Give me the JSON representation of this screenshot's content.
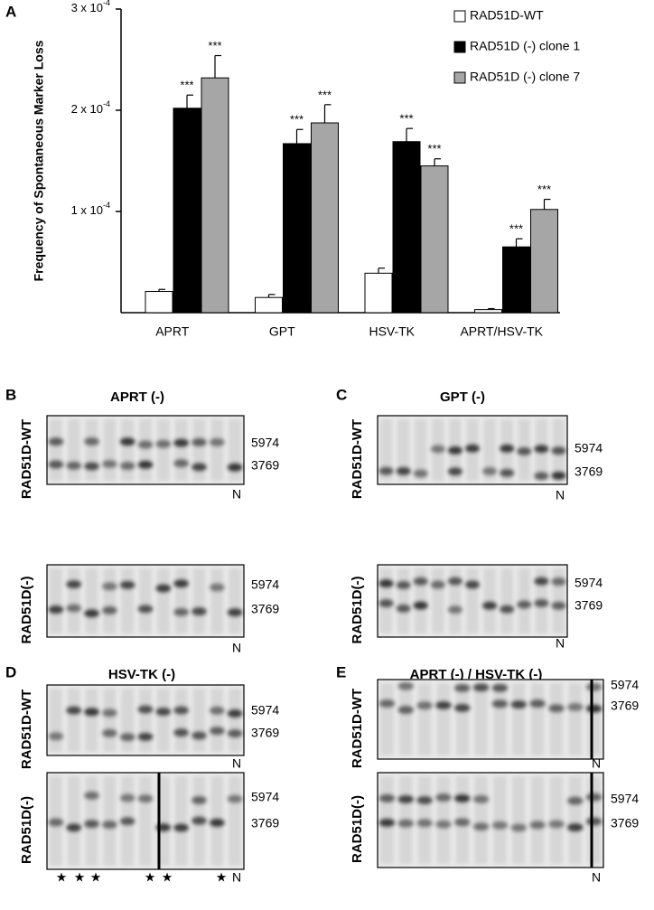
{
  "chart_data": {
    "type": "bar",
    "panel_label": "A",
    "y_label": "Frequency of Spontaneous Marker Loss",
    "categories": [
      "APRT",
      "GPT",
      "HSV-TK",
      "APRT/HSV-TK"
    ],
    "ylim": [
      0,
      0.0003
    ],
    "yticks": [
      {
        "value": 0.0001,
        "label": "1 x 10",
        "exponent": "-4"
      },
      {
        "value": 0.0002,
        "label": "2 x 10",
        "exponent": "-4"
      },
      {
        "value": 0.0003,
        "label": "3 x 10",
        "exponent": "-4"
      }
    ],
    "legend": "top-right",
    "series": [
      {
        "name": "RAD51D-WT",
        "color": "#ffffff",
        "values": [
          2.1e-05,
          1.5e-05,
          3.9e-05,
          3e-06
        ],
        "errors": [
          2e-06,
          3e-06,
          5e-06,
          1e-06
        ]
      },
      {
        "name": "RAD51D (-) clone 1",
        "color": "#000000",
        "values": [
          0.000202,
          0.000167,
          0.000169,
          6.5e-05
        ],
        "errors": [
          1.3e-05,
          1.4e-05,
          1.3e-05,
          8e-06
        ],
        "annotations": [
          "***",
          "***",
          "***",
          "***"
        ]
      },
      {
        "name": "RAD51D (-) clone 7",
        "color": "#a6a6a6",
        "values": [
          0.000232,
          0.0001875,
          0.000145,
          0.000102
        ],
        "errors": [
          2.2e-05,
          1.8e-05,
          7e-06,
          1e-05
        ],
        "annotations": [
          "***",
          "***",
          "***",
          "***"
        ]
      }
    ]
  },
  "blots": [
    {
      "panel": "B",
      "title": "APRT (-)",
      "rows": [
        {
          "label": "RAD51D-WT",
          "markers": [
            "5974",
            "3769"
          ],
          "lane_label": "N"
        },
        {
          "label": "RAD51D(-)",
          "markers": [
            "5974",
            "3769"
          ],
          "lane_label": "N"
        }
      ]
    },
    {
      "panel": "C",
      "title": "GPT (-)",
      "rows": [
        {
          "label": "RAD51D-WT",
          "markers": [
            "5974",
            "3769"
          ],
          "lane_label": "N"
        },
        {
          "label": "RAD51D(-)",
          "markers": [
            "5974",
            "3769"
          ],
          "lane_label": "N"
        }
      ]
    },
    {
      "panel": "D",
      "title": "HSV-TK (-)",
      "rows": [
        {
          "label": "RAD51D-WT",
          "markers": [
            "5974",
            "3769"
          ],
          "lane_label": "N"
        },
        {
          "label": "RAD51D(-)",
          "markers": [
            "5974",
            "3769"
          ],
          "lane_label": "N",
          "lane_marks": [
            "★",
            "★",
            "★",
            "★",
            "★",
            "★"
          ]
        }
      ]
    },
    {
      "panel": "E",
      "title": "APRT (-) / HSV-TK (-)",
      "rows": [
        {
          "label": "RAD51D-WT",
          "markers": [
            "5974",
            "3769"
          ],
          "lane_label": "N"
        },
        {
          "label": "RAD51D(-)",
          "markers": [
            "5974",
            "3769"
          ],
          "lane_label": "N"
        }
      ]
    }
  ]
}
